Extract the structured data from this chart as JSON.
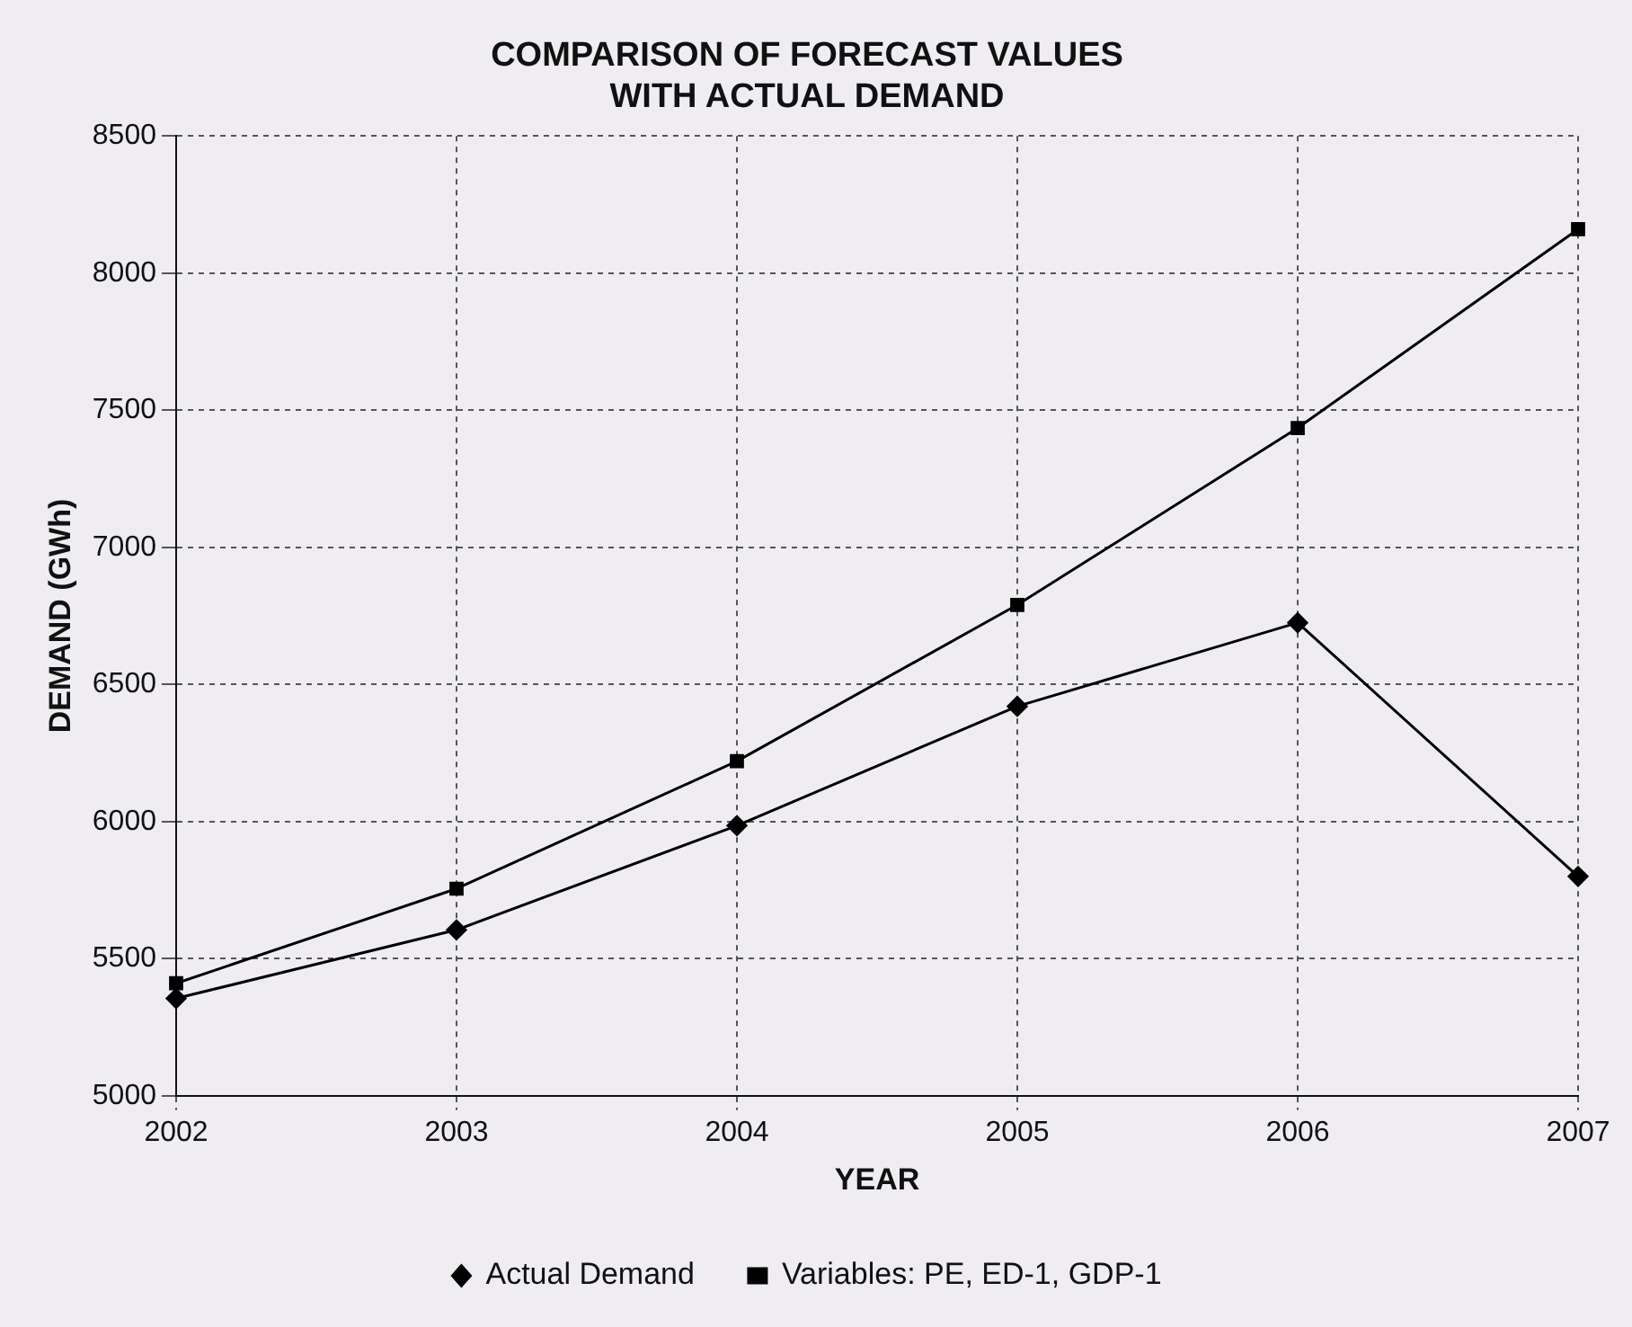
{
  "chart_data": {
    "type": "line",
    "title": "COMPARISON OF FORECAST VALUES\nWITH ACTUAL DEMAND",
    "xlabel": "YEAR",
    "ylabel": "DEMAND (GWh)",
    "categories": [
      "2002",
      "2003",
      "2004",
      "2005",
      "2006",
      "2007"
    ],
    "series": [
      {
        "name": "Actual Demand",
        "color": "#000000",
        "marker": "diamond",
        "values": [
          5355,
          5605,
          5985,
          6420,
          6725,
          5800
        ]
      },
      {
        "name": "Variables: PE, ED-1, GDP-1",
        "color": "#000000",
        "marker": "square",
        "values": [
          5410,
          5755,
          6220,
          6790,
          7435,
          8160
        ]
      }
    ],
    "ylim": [
      5000,
      8500
    ],
    "yticks": [
      5000,
      5500,
      6000,
      6500,
      7000,
      7500,
      8000,
      8500
    ],
    "grid": true,
    "legend": "bottom",
    "line_style": "solid"
  }
}
